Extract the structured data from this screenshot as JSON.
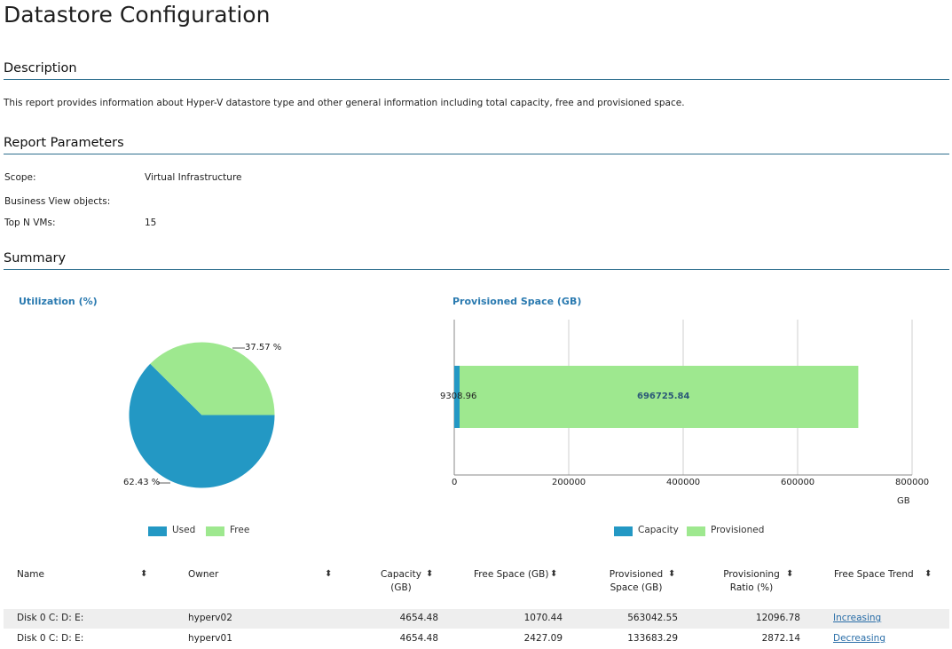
{
  "page": {
    "title": "Datastore Configuration"
  },
  "description": {
    "heading": "Description",
    "text": "This report provides information about Hyper-V datastore type and other general information including total capacity, free and provisioned space."
  },
  "parameters": {
    "heading": "Report Parameters",
    "items": [
      {
        "label": "Scope:",
        "value": "Virtual Infrastructure"
      },
      {
        "label": "Business View objects:",
        "value": ""
      },
      {
        "label": "Top N VMs:",
        "value": "15"
      }
    ]
  },
  "summary": {
    "heading": "Summary"
  },
  "colors": {
    "accent_rule": "#2e6f8e",
    "used": "#2398c4",
    "free": "#9ee88f",
    "link": "#2a6ea8",
    "chart_title": "#2a7ab0"
  },
  "chart_data": [
    {
      "type": "pie",
      "title": "Utilization (%)",
      "slices": [
        {
          "name": "Used",
          "value": 62.43,
          "label": "62.43 %",
          "color": "#2398c4"
        },
        {
          "name": "Free",
          "value": 37.57,
          "label": "37.57 %",
          "color": "#9ee88f"
        }
      ],
      "legend": "bottom"
    },
    {
      "type": "bar",
      "orientation": "horizontal",
      "stacked": true,
      "title": "Provisioned Space (GB)",
      "xlabel": "GB",
      "xlim": [
        0,
        800000
      ],
      "xticks": [
        "0",
        "200000",
        "400000",
        "600000",
        "800000"
      ],
      "series": [
        {
          "name": "Capacity",
          "values": [
            9308.96
          ],
          "label": "9308.96",
          "color": "#2398c4"
        },
        {
          "name": "Provisioned",
          "values": [
            696725.84
          ],
          "label": "696725.84",
          "color": "#9ee88f"
        }
      ],
      "grid": true,
      "legend": "bottom"
    }
  ],
  "table": {
    "columns": [
      {
        "label": "Name",
        "sort_icon": "⬍"
      },
      {
        "label": "Owner",
        "sort_icon": "⬍"
      },
      {
        "label_line1": "Capacity",
        "label_line2": "(GB)",
        "sort_icon": "⬍"
      },
      {
        "label": "Free Space (GB)",
        "sort_icon": "⬍"
      },
      {
        "label_line1": "Provisioned",
        "label_line2": "Space (GB)",
        "sort_icon": "⬍"
      },
      {
        "label_line1": "Provisioning",
        "label_line2": "Ratio (%)",
        "sort_icon": "⬍"
      },
      {
        "label": "Free Space Trend",
        "sort_icon": "⬍"
      }
    ],
    "rows": [
      {
        "name": "Disk 0  C: D: E:",
        "owner": "hyperv02",
        "capacity": "4654.48",
        "free": "1070.44",
        "provisioned": "563042.55",
        "ratio": "12096.78",
        "trend": "Increasing"
      },
      {
        "name": "Disk 0  C: D: E:",
        "owner": "hyperv01",
        "capacity": "4654.48",
        "free": "2427.09",
        "provisioned": "133683.29",
        "ratio": "2872.14",
        "trend": "Decreasing"
      }
    ]
  }
}
